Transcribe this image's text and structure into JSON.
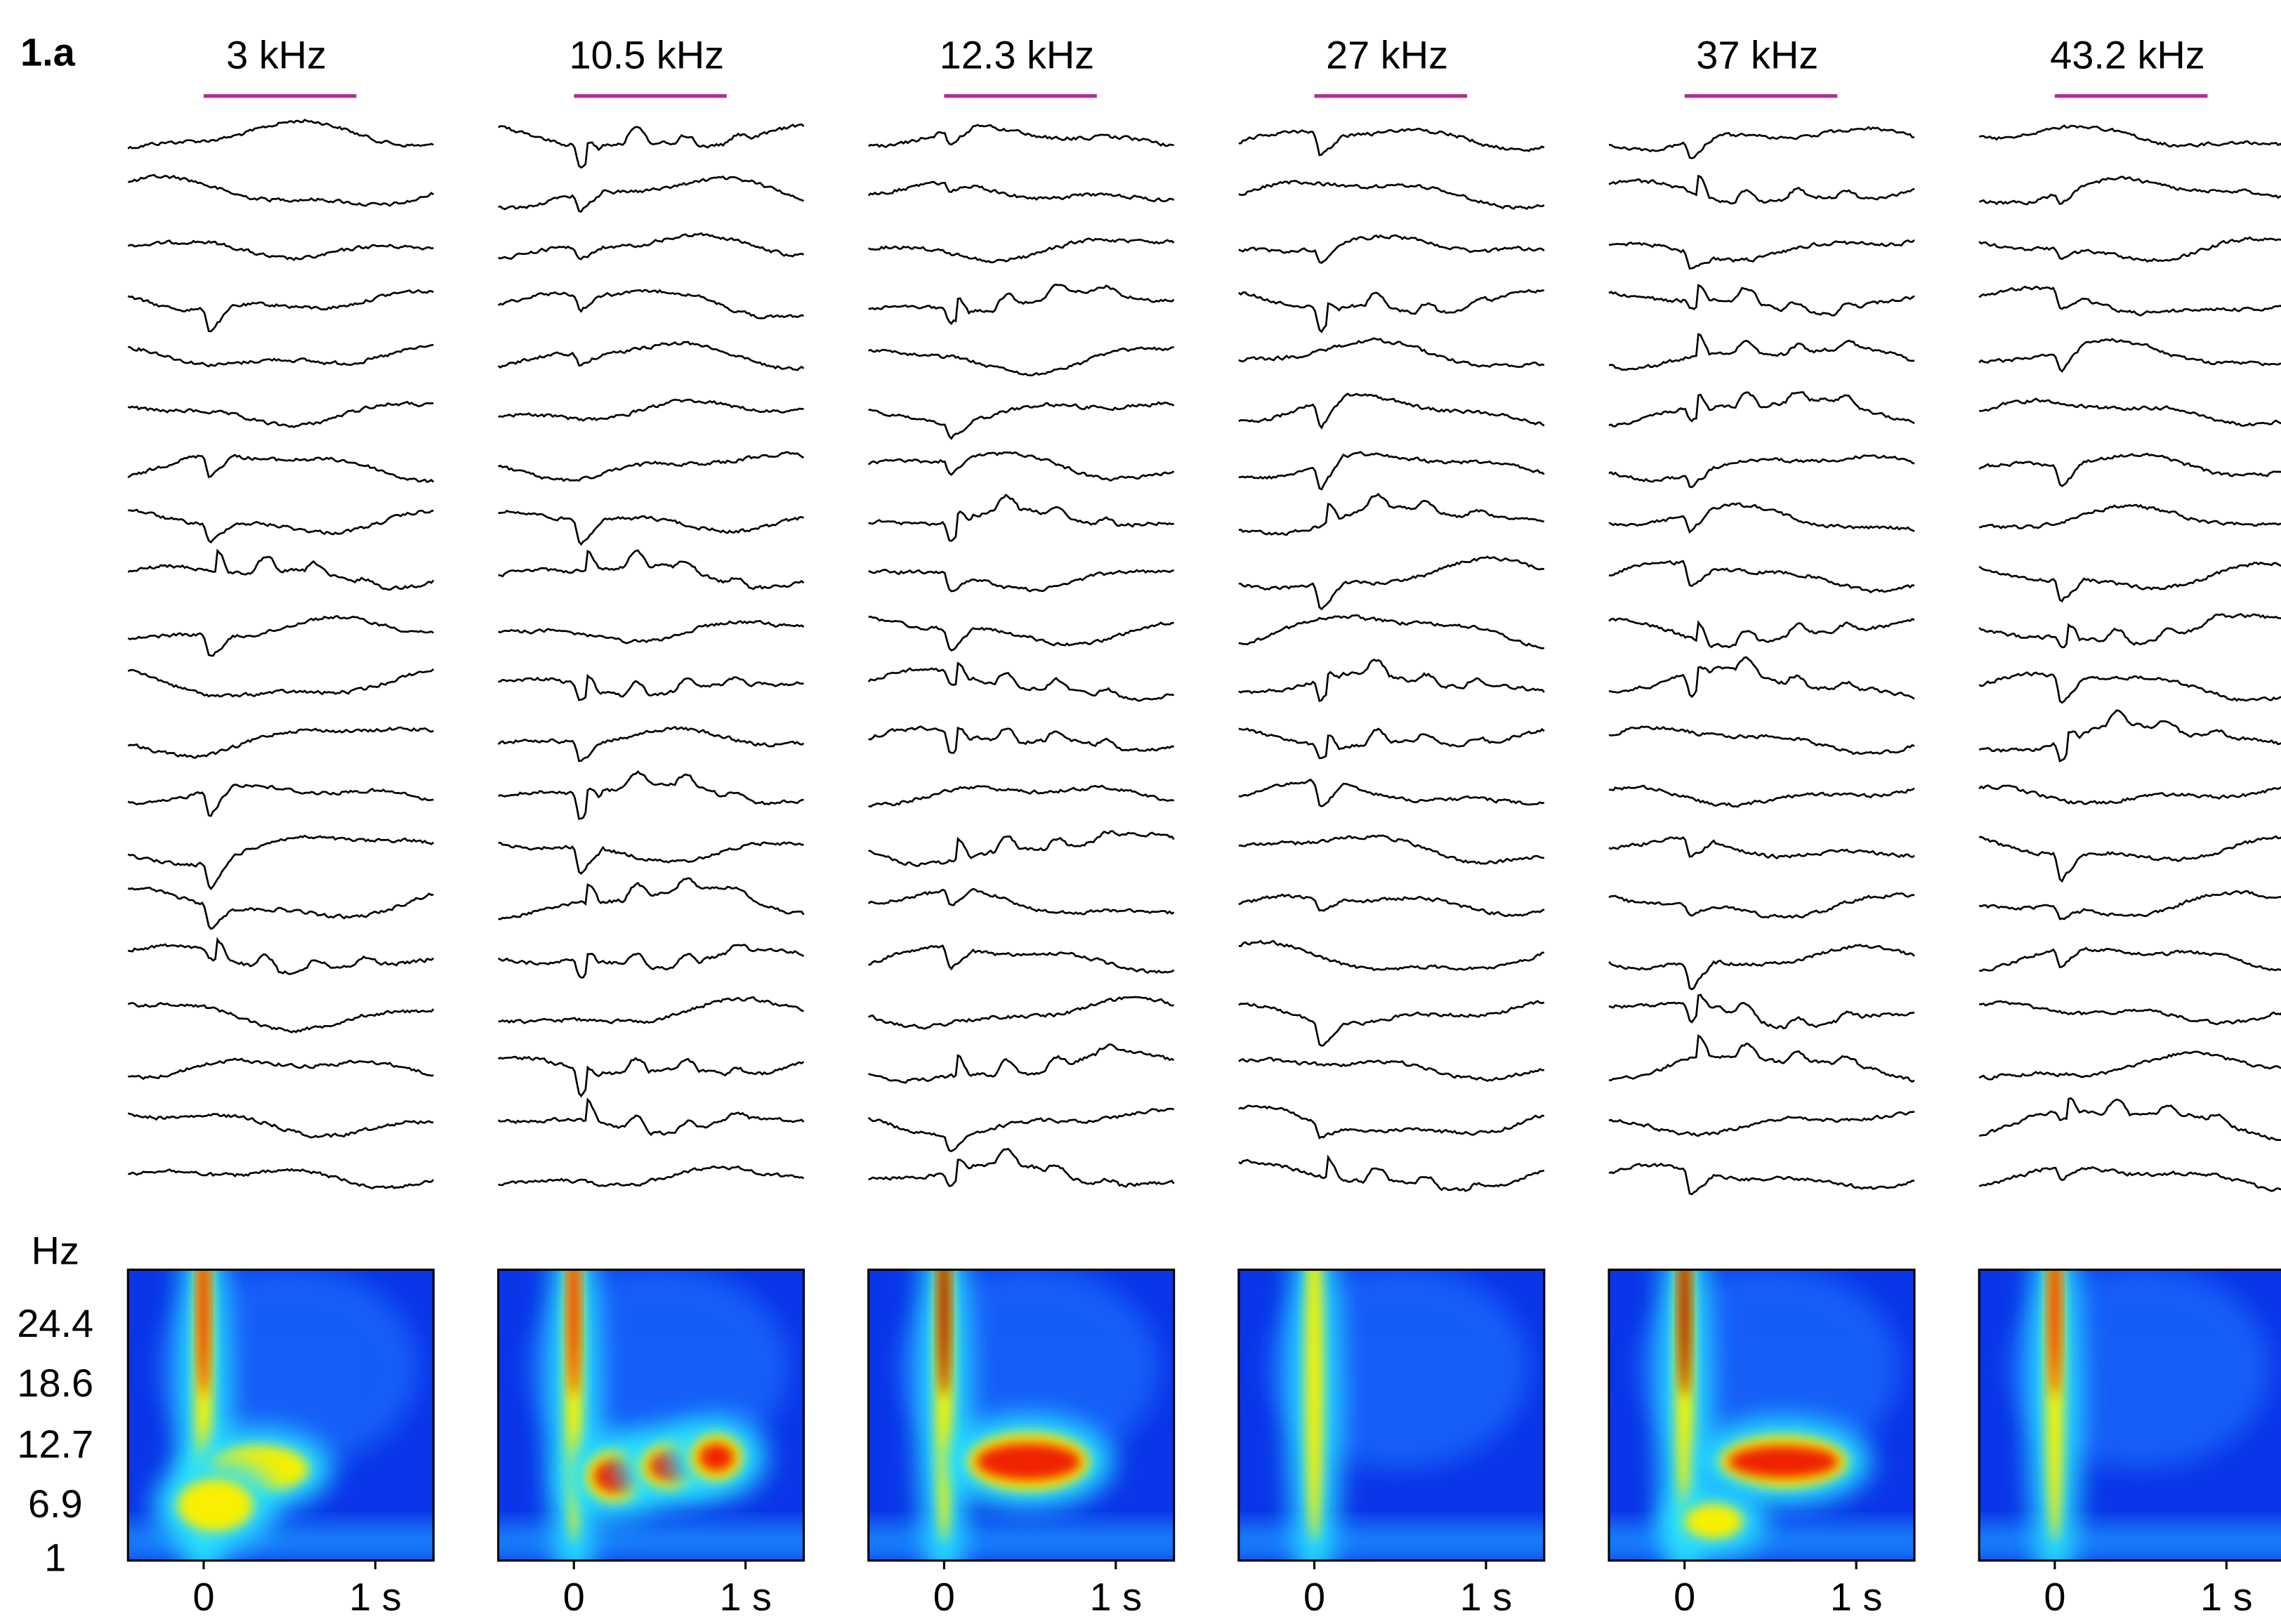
{
  "panel_label": "1.a",
  "columns": [
    {
      "title": "3 kHz"
    },
    {
      "title": "10.5 kHz"
    },
    {
      "title": "12.3 kHz"
    },
    {
      "title": "27 kHz"
    },
    {
      "title": "37 kHz"
    },
    {
      "title": "43.2 kHz"
    }
  ],
  "heatmap_axis": {
    "unit": "Hz",
    "yticks": [
      "24.4",
      "18.6",
      "12.7",
      "6.9",
      "1"
    ],
    "xticks": [
      "0",
      "1 s"
    ]
  }
}
